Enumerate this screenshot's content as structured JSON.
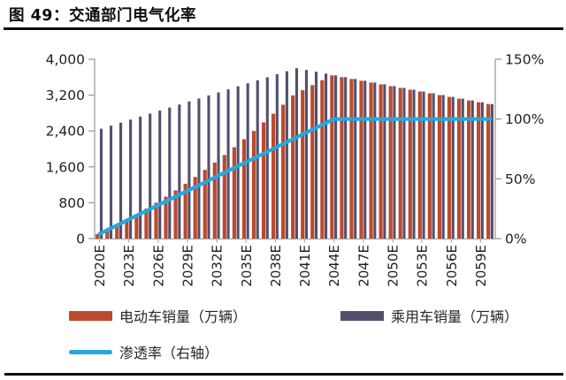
{
  "figure": {
    "title": "图 49：交通部门电气化率"
  },
  "chart_data": {
    "type": "bar",
    "title": "交通部门电气化率",
    "years": [
      2020,
      2021,
      2022,
      2023,
      2024,
      2025,
      2026,
      2027,
      2028,
      2029,
      2030,
      2031,
      2032,
      2033,
      2034,
      2035,
      2036,
      2037,
      2038,
      2039,
      2040,
      2041,
      2042,
      2043,
      2044,
      2045,
      2046,
      2047,
      2048,
      2049,
      2050,
      2051,
      2052,
      2053,
      2054,
      2055,
      2056,
      2057,
      2058,
      2059,
      2060
    ],
    "x_tick_years": [
      2020,
      2023,
      2026,
      2029,
      2032,
      2035,
      2038,
      2041,
      2044,
      2047,
      2050,
      2053,
      2056,
      2059
    ],
    "x_tick_labels": [
      "2020E",
      "2023E",
      "2026E",
      "2029E",
      "2032E",
      "2035E",
      "2038E",
      "2041E",
      "2044E",
      "2047E",
      "2050E",
      "2053E",
      "2056E",
      "2059E"
    ],
    "series": [
      {
        "name": "电动车销量（万辆）",
        "type": "bar",
        "axis": "left",
        "color": "#BC4A2D",
        "values": [
          98,
          201,
          310,
          424,
          544,
          669,
          799,
          935,
          1076,
          1223,
          1375,
          1533,
          1695,
          1864,
          2037,
          2216,
          2400,
          2591,
          2785,
          2986,
          3192,
          3309,
          3422,
          3533,
          3640,
          3600,
          3560,
          3520,
          3480,
          3440,
          3400,
          3360,
          3320,
          3280,
          3240,
          3200,
          3160,
          3120,
          3080,
          3040,
          3000
        ]
      },
      {
        "name": "乘用车销量（万辆）",
        "type": "bar",
        "axis": "left",
        "color": "#534F6C",
        "values": [
          2450,
          2518,
          2585,
          2653,
          2720,
          2788,
          2855,
          2923,
          2990,
          3058,
          3125,
          3193,
          3260,
          3328,
          3395,
          3463,
          3530,
          3598,
          3665,
          3733,
          3800,
          3760,
          3720,
          3680,
          3640,
          3600,
          3560,
          3520,
          3480,
          3440,
          3400,
          3360,
          3320,
          3280,
          3240,
          3200,
          3160,
          3120,
          3080,
          3040,
          3000
        ]
      },
      {
        "name": "渗透率（右轴）",
        "type": "line",
        "axis": "right",
        "color": "#25A8DF",
        "values_pct": [
          4,
          8,
          12,
          16,
          20,
          24,
          28,
          32,
          36,
          40,
          44,
          48,
          52,
          56,
          60,
          64,
          68,
          72,
          76,
          80,
          84,
          88,
          92,
          96,
          100,
          100,
          100,
          100,
          100,
          100,
          100,
          100,
          100,
          100,
          100,
          100,
          100,
          100,
          100,
          100,
          100
        ]
      }
    ],
    "left_axis": {
      "min": 0,
      "max": 4000,
      "step": 800,
      "tick_labels": [
        "0",
        "800",
        "1,600",
        "2,400",
        "3,200",
        "4,000"
      ]
    },
    "right_axis": {
      "min": 0,
      "max": 150,
      "step": 50,
      "tick_labels": [
        "0%",
        "50%",
        "100%",
        "150%"
      ]
    },
    "grid": false,
    "legend_position": "bottom"
  },
  "colors": {
    "axis": "#9E9E9E",
    "baseline": "#ADADAD",
    "tick_text": "#1F1F1F",
    "rule": "#0D0D0D",
    "background": "#FFFFFF"
  }
}
